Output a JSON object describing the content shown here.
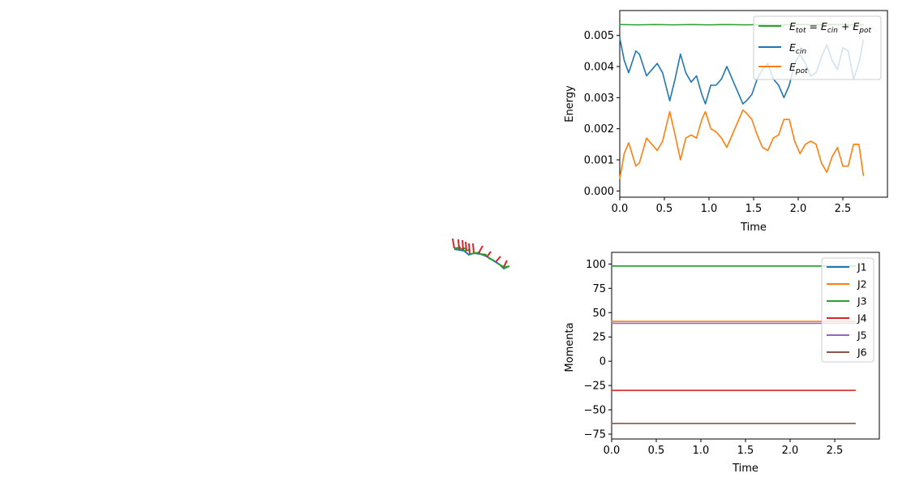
{
  "colors": {
    "blue": "#1f77b4",
    "orange": "#ff7f0e",
    "green": "#2ca02c",
    "red": "#d62728",
    "purple": "#9467bd",
    "brown": "#8c564b",
    "background": "#ffffff"
  },
  "robot_view": {
    "description_free": true,
    "arm_color": "#1f77b4",
    "frame_x_color": "#d62728",
    "frame_y_color": "#2ca02c"
  },
  "chart_data": [
    {
      "type": "line",
      "xlabel": "Time",
      "ylabel": "Energy",
      "xlim": [
        0,
        3.0
      ],
      "ylim": [
        -0.0002,
        0.0058
      ],
      "xticks": [
        0.0,
        0.5,
        1.0,
        1.5,
        2.0,
        2.5
      ],
      "xtick_labels": [
        "0.0",
        "0.5",
        "1.0",
        "1.5",
        "2.0",
        "2.5"
      ],
      "yticks": [
        0.0,
        0.001,
        0.002,
        0.003,
        0.004,
        0.005
      ],
      "ytick_labels": [
        "0.000",
        "0.001",
        "0.002",
        "0.003",
        "0.004",
        "0.005"
      ],
      "legend_position": "top-right",
      "legend": [
        "E_tot = E_cin + E_pot",
        "E_cin",
        "E_pot"
      ],
      "legend_display": [
        {
          "base": "E",
          "sub": "tot",
          "rest": " = E",
          "sub2": "cin",
          "rest2": " + E",
          "sub3": "pot"
        },
        {
          "base": "E",
          "sub": "cin"
        },
        {
          "base": "E",
          "sub": "pot"
        }
      ],
      "series": [
        {
          "legend_index": 0,
          "color": "#2ca02c",
          "x": [
            0.0,
            0.2,
            0.4,
            0.6,
            0.8,
            1.0,
            1.2,
            1.4,
            1.6,
            1.8,
            2.0,
            2.2,
            2.4,
            2.6,
            2.73
          ],
          "y": [
            0.00535,
            0.00534,
            0.00535,
            0.00534,
            0.00535,
            0.00534,
            0.00535,
            0.00534,
            0.00535,
            0.00534,
            0.00535,
            0.00534,
            0.00535,
            0.00534,
            0.00535
          ]
        },
        {
          "legend_index": 1,
          "color": "#1f77b4",
          "x": [
            0.0,
            0.05,
            0.1,
            0.18,
            0.22,
            0.3,
            0.36,
            0.42,
            0.48,
            0.56,
            0.62,
            0.68,
            0.74,
            0.8,
            0.86,
            0.92,
            0.96,
            1.02,
            1.08,
            1.14,
            1.2,
            1.26,
            1.32,
            1.38,
            1.42,
            1.48,
            1.54,
            1.6,
            1.66,
            1.72,
            1.78,
            1.84,
            1.9,
            1.96,
            2.02,
            2.08,
            2.14,
            2.2,
            2.26,
            2.32,
            2.38,
            2.44,
            2.5,
            2.56,
            2.62,
            2.68,
            2.73
          ],
          "y": [
            0.00492,
            0.0042,
            0.0038,
            0.0045,
            0.0044,
            0.0037,
            0.0039,
            0.0041,
            0.0038,
            0.0029,
            0.0036,
            0.0044,
            0.0038,
            0.0035,
            0.0037,
            0.0031,
            0.0028,
            0.0034,
            0.0034,
            0.0036,
            0.004,
            0.0036,
            0.0032,
            0.0028,
            0.0029,
            0.0031,
            0.0036,
            0.0039,
            0.0041,
            0.0036,
            0.0034,
            0.003,
            0.0034,
            0.0041,
            0.0044,
            0.0041,
            0.0037,
            0.0038,
            0.0043,
            0.0047,
            0.0042,
            0.0039,
            0.0046,
            0.0045,
            0.0036,
            0.0041,
            0.00485
          ]
        },
        {
          "legend_index": 2,
          "color": "#ff7f0e",
          "x": [
            0.0,
            0.05,
            0.1,
            0.18,
            0.22,
            0.3,
            0.36,
            0.42,
            0.48,
            0.56,
            0.62,
            0.68,
            0.74,
            0.8,
            0.86,
            0.92,
            0.96,
            1.02,
            1.08,
            1.14,
            1.2,
            1.26,
            1.32,
            1.38,
            1.42,
            1.48,
            1.54,
            1.6,
            1.66,
            1.72,
            1.78,
            1.84,
            1.9,
            1.96,
            2.02,
            2.08,
            2.14,
            2.2,
            2.26,
            2.32,
            2.38,
            2.44,
            2.5,
            2.56,
            2.62,
            2.68,
            2.73
          ],
          "y": [
            0.0004,
            0.0012,
            0.00155,
            0.0008,
            0.0009,
            0.0017,
            0.0015,
            0.0013,
            0.0016,
            0.00255,
            0.0018,
            0.001,
            0.0017,
            0.0018,
            0.0017,
            0.0023,
            0.00255,
            0.002,
            0.0019,
            0.0017,
            0.0014,
            0.0018,
            0.0022,
            0.0026,
            0.0025,
            0.0023,
            0.0018,
            0.0014,
            0.0013,
            0.0017,
            0.0018,
            0.0023,
            0.0023,
            0.0016,
            0.0012,
            0.0015,
            0.0016,
            0.0015,
            0.0009,
            0.0006,
            0.0011,
            0.0014,
            0.0008,
            0.0008,
            0.0015,
            0.0015,
            0.0005
          ]
        }
      ]
    },
    {
      "type": "line",
      "xlabel": "Time",
      "ylabel": "Momenta",
      "xlim": [
        0,
        3.0
      ],
      "ylim": [
        -80,
        112
      ],
      "xticks": [
        0.0,
        0.5,
        1.0,
        1.5,
        2.0,
        2.5
      ],
      "xtick_labels": [
        "0.0",
        "0.5",
        "1.0",
        "1.5",
        "2.0",
        "2.5"
      ],
      "yticks": [
        -75,
        -50,
        -25,
        0,
        25,
        50,
        75,
        100
      ],
      "ytick_labels": [
        "−75",
        "−50",
        "−25",
        "0",
        "25",
        "50",
        "75",
        "100"
      ],
      "legend_position": "top-right",
      "legend": [
        "J1",
        "J2",
        "J3",
        "J4",
        "J5",
        "J6"
      ],
      "series": [
        {
          "name": "J1",
          "color": "#1f77b4",
          "x": [
            0.0,
            2.73
          ],
          "y": [
            98,
            98
          ]
        },
        {
          "name": "J2",
          "color": "#ff7f0e",
          "x": [
            0.0,
            2.73
          ],
          "y": [
            41,
            41
          ]
        },
        {
          "name": "J3",
          "color": "#2ca02c",
          "x": [
            0.0,
            2.73
          ],
          "y": [
            98,
            98
          ]
        },
        {
          "name": "J4",
          "color": "#d62728",
          "x": [
            0.0,
            2.73
          ],
          "y": [
            -30,
            -30
          ]
        },
        {
          "name": "J5",
          "color": "#9467bd",
          "x": [
            0.0,
            2.73
          ],
          "y": [
            39,
            39
          ]
        },
        {
          "name": "J6",
          "color": "#8c564b",
          "x": [
            0.0,
            2.73
          ],
          "y": [
            -64,
            -64
          ]
        }
      ]
    }
  ]
}
